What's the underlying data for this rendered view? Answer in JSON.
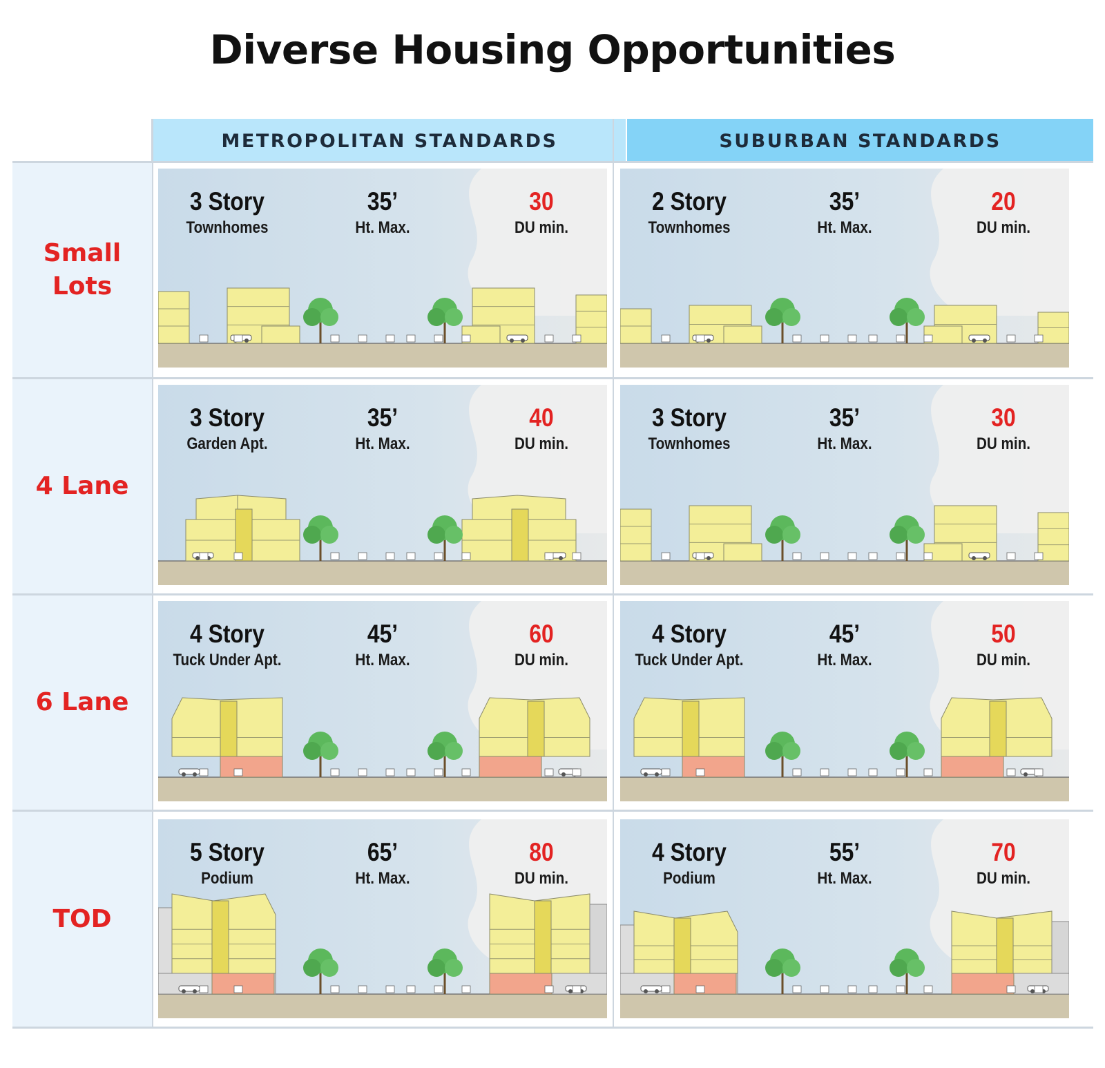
{
  "title": "Diverse Housing Opportunities",
  "columns": {
    "metropolitan": "METROPOLITAN STANDARDS",
    "suburban": "SUBURBAN STANDARDS"
  },
  "rows": [
    {
      "label": "Small\nLots",
      "metropolitan": {
        "stories": "3 Story",
        "type": "Townhomes",
        "height": "35’",
        "height_label": "Ht. Max.",
        "du": "30",
        "du_label": "DU min."
      },
      "suburban": {
        "stories": "2 Story",
        "type": "Townhomes",
        "height": "35’",
        "height_label": "Ht. Max.",
        "du": "20",
        "du_label": "DU min."
      }
    },
    {
      "label": "4 Lane",
      "metropolitan": {
        "stories": "3 Story",
        "type": "Garden Apt.",
        "height": "35’",
        "height_label": "Ht. Max.",
        "du": "40",
        "du_label": "DU min."
      },
      "suburban": {
        "stories": "3 Story",
        "type": "Townhomes",
        "height": "35’",
        "height_label": "Ht. Max.",
        "du": "30",
        "du_label": "DU min."
      }
    },
    {
      "label": "6 Lane",
      "metropolitan": {
        "stories": "4 Story",
        "type": "Tuck Under Apt.",
        "height": "45’",
        "height_label": "Ht. Max.",
        "du": "60",
        "du_label": "DU min."
      },
      "suburban": {
        "stories": "4 Story",
        "type": "Tuck Under Apt.",
        "height": "45’",
        "height_label": "Ht. Max.",
        "du": "50",
        "du_label": "DU min."
      }
    },
    {
      "label": "TOD",
      "metropolitan": {
        "stories": "5 Story",
        "type": "Podium",
        "height": "65’",
        "height_label": "Ht. Max.",
        "du": "80",
        "du_label": "DU min."
      },
      "suburban": {
        "stories": "4 Story",
        "type": "Podium",
        "height": "55’",
        "height_label": "Ht. Max.",
        "du": "70",
        "du_label": "DU min."
      }
    }
  ],
  "colors": {
    "accent_red": "#e32322",
    "header_metro": "#b9e6fb",
    "header_suburban": "#84d3f7",
    "row_label_bg": "#eaf3fb",
    "building_yellow": "#f3ee98",
    "podium_salmon": "#f2a58c",
    "tree_green": "#5cb85c"
  }
}
